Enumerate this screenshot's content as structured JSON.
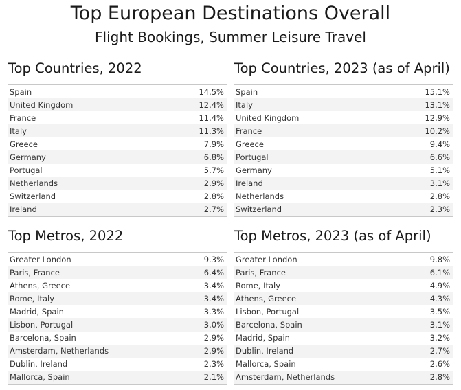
{
  "title": "Top European Destinations Overall",
  "subtitle": "Flight Bookings, Summer Leisure Travel",
  "chart_data": [
    {
      "type": "table",
      "title": "Top Countries, 2022",
      "rows": [
        {
          "label": "Spain",
          "value": "14.5%"
        },
        {
          "label": "United Kingdom",
          "value": "12.4%"
        },
        {
          "label": "France",
          "value": "11.4%"
        },
        {
          "label": "Italy",
          "value": "11.3%"
        },
        {
          "label": "Greece",
          "value": "7.9%"
        },
        {
          "label": "Germany",
          "value": "6.8%"
        },
        {
          "label": "Portugal",
          "value": "5.7%"
        },
        {
          "label": "Netherlands",
          "value": "2.9%"
        },
        {
          "label": "Switzerland",
          "value": "2.8%"
        },
        {
          "label": "Ireland",
          "value": "2.7%"
        }
      ]
    },
    {
      "type": "table",
      "title": "Top Countries, 2023 (as of April)",
      "rows": [
        {
          "label": "Spain",
          "value": "15.1%"
        },
        {
          "label": "Italy",
          "value": "13.1%"
        },
        {
          "label": "United Kingdom",
          "value": "12.9%"
        },
        {
          "label": "France",
          "value": "10.2%"
        },
        {
          "label": "Greece",
          "value": "9.4%"
        },
        {
          "label": "Portugal",
          "value": "6.6%"
        },
        {
          "label": "Germany",
          "value": "5.1%"
        },
        {
          "label": "Ireland",
          "value": "3.1%"
        },
        {
          "label": "Netherlands",
          "value": "2.8%"
        },
        {
          "label": "Switzerland",
          "value": "2.3%"
        }
      ]
    },
    {
      "type": "table",
      "title": "Top Metros, 2022",
      "rows": [
        {
          "label": "Greater London",
          "value": "9.3%"
        },
        {
          "label": "Paris, France",
          "value": "6.4%"
        },
        {
          "label": "Athens, Greece",
          "value": "3.4%"
        },
        {
          "label": "Rome, Italy",
          "value": "3.4%"
        },
        {
          "label": "Madrid, Spain",
          "value": "3.3%"
        },
        {
          "label": "Lisbon, Portugal",
          "value": "3.0%"
        },
        {
          "label": "Barcelona, Spain",
          "value": "2.9%"
        },
        {
          "label": "Amsterdam, Netherlands",
          "value": "2.9%"
        },
        {
          "label": "Dublin, Ireland",
          "value": "2.3%"
        },
        {
          "label": "Mallorca, Spain",
          "value": "2.1%"
        }
      ]
    },
    {
      "type": "table",
      "title": "Top Metros, 2023 (as of April)",
      "rows": [
        {
          "label": "Greater London",
          "value": "9.8%"
        },
        {
          "label": "Paris, France",
          "value": "6.1%"
        },
        {
          "label": "Rome, Italy",
          "value": "4.9%"
        },
        {
          "label": "Athens, Greece",
          "value": "4.3%"
        },
        {
          "label": "Lisbon, Portugal",
          "value": "3.5%"
        },
        {
          "label": "Barcelona, Spain",
          "value": "3.1%"
        },
        {
          "label": "Madrid, Spain",
          "value": "3.2%"
        },
        {
          "label": "Dublin, Ireland",
          "value": "2.7%"
        },
        {
          "label": "Mallorca, Spain",
          "value": "2.6%"
        },
        {
          "label": "Amsterdam, Netherlands",
          "value": "2.8%"
        }
      ]
    }
  ]
}
